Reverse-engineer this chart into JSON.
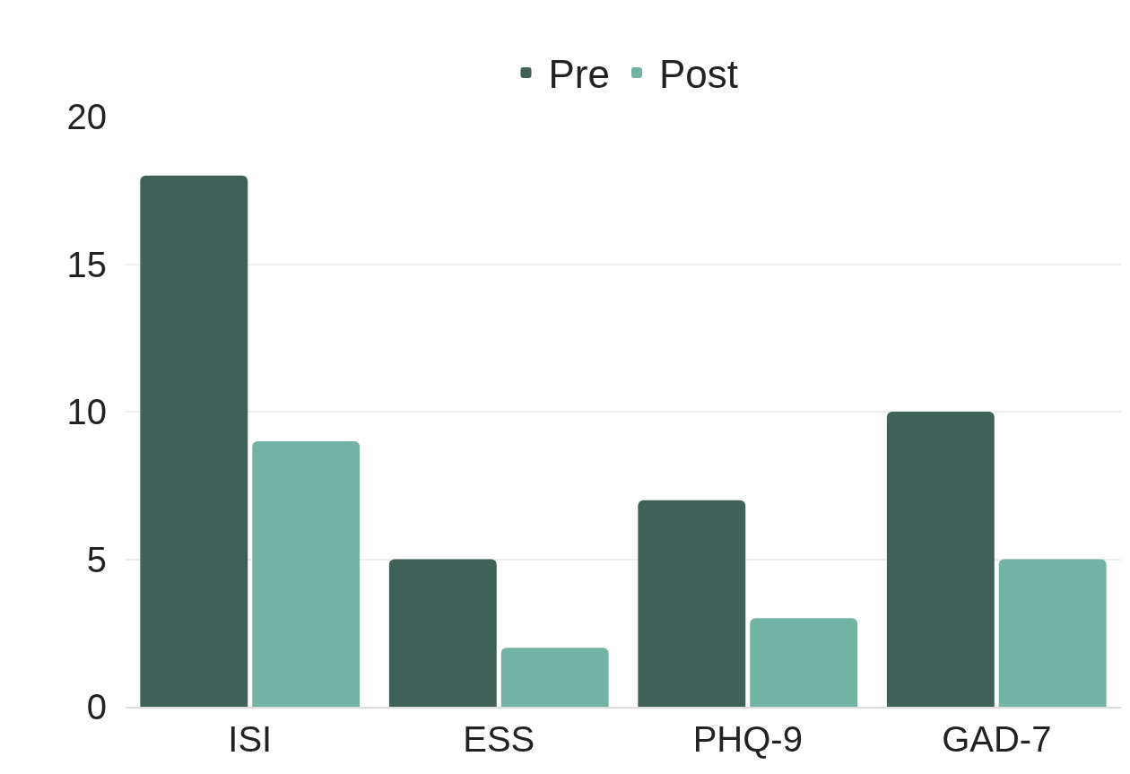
{
  "chart_data": {
    "type": "bar",
    "categories": [
      "ISI",
      "ESS",
      "PHQ-9",
      "GAD-7"
    ],
    "series": [
      {
        "name": "Pre",
        "color": "#3f6158",
        "values": [
          18,
          5,
          7,
          10
        ]
      },
      {
        "name": "Post",
        "color": "#72b3a4",
        "values": [
          9,
          2,
          3,
          5
        ]
      }
    ],
    "ylim": [
      0,
      20
    ],
    "yticks": [
      0,
      5,
      10,
      15,
      20
    ],
    "grid": "y",
    "legend": "top"
  }
}
